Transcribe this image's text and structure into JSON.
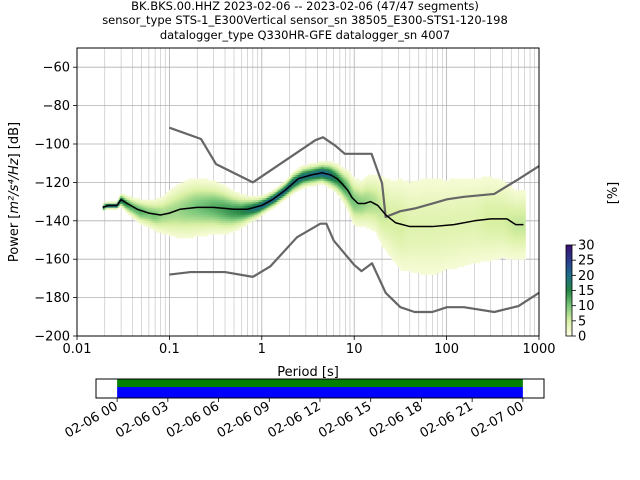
{
  "header": {
    "title_line1": "BK.BKS.00.HHZ   2023-02-06 -- 2023-02-06  (47/47 segments)",
    "title_line2": "sensor_type STS-1_E300Vertical sensor_sn 38505_E300-STS1-120-198",
    "title_line3": "datalogger_type Q330HR-GFE datalogger_sn 4007"
  },
  "chart_data": [
    {
      "type": "heatmap",
      "xlabel": "Period [s]",
      "ylabel_prefix": "Power [",
      "ylabel_units": "m²/s⁴/Hz",
      "ylabel_suffix": "] [dB]",
      "xscale": "log",
      "xlim": [
        0.01,
        1000
      ],
      "ylim": [
        -200,
        -50
      ],
      "x_ticks": [
        {
          "value": 0.01,
          "label": "0.01"
        },
        {
          "value": 0.1,
          "label": "0.1"
        },
        {
          "value": 1,
          "label": "1"
        },
        {
          "value": 10,
          "label": "10"
        },
        {
          "value": 100,
          "label": "100"
        },
        {
          "value": 1000,
          "label": "1000"
        }
      ],
      "y_ticks": [
        {
          "value": -60,
          "label": "−60"
        },
        {
          "value": -80,
          "label": "−80"
        },
        {
          "value": -100,
          "label": "−100"
        },
        {
          "value": -120,
          "label": "−120"
        },
        {
          "value": -140,
          "label": "−140"
        },
        {
          "value": -160,
          "label": "−160"
        },
        {
          "value": -180,
          "label": "−180"
        },
        {
          "value": -200,
          "label": "−200"
        }
      ],
      "grid": true,
      "colorbar": {
        "label": "[%]",
        "min": 0,
        "max": 30,
        "ticks": [
          {
            "value": 0,
            "label": "0"
          },
          {
            "value": 5,
            "label": "5"
          },
          {
            "value": 10,
            "label": "10"
          },
          {
            "value": 15,
            "label": "15"
          },
          {
            "value": 20,
            "label": "20"
          },
          {
            "value": 25,
            "label": "25"
          },
          {
            "value": 30,
            "label": "30"
          }
        ],
        "colors": [
          "#ffffe5",
          "#d9f0a3",
          "#78c679",
          "#238443",
          "#1d6f8a",
          "#2b3a8c",
          "#3b0f70"
        ]
      },
      "density_band": [
        [
          0.019,
          -133,
          0.8,
          22
        ],
        [
          0.021,
          -132,
          0.8,
          22
        ],
        [
          0.024,
          -132,
          0.8,
          22
        ],
        [
          0.027,
          -132,
          0.8,
          24
        ],
        [
          0.03,
          -129,
          1.5,
          20
        ],
        [
          0.034,
          -131,
          2,
          15
        ],
        [
          0.04,
          -133,
          2.5,
          12
        ],
        [
          0.048,
          -135,
          3,
          12
        ],
        [
          0.058,
          -136,
          3.5,
          10
        ],
        [
          0.07,
          -137,
          4,
          10
        ],
        [
          0.085,
          -137,
          5,
          8
        ],
        [
          0.1,
          -136,
          6,
          8
        ],
        [
          0.12,
          -135,
          7,
          8
        ],
        [
          0.15,
          -134,
          7.5,
          9
        ],
        [
          0.19,
          -133,
          7.5,
          10
        ],
        [
          0.24,
          -133,
          7,
          11
        ],
        [
          0.3,
          -133,
          6.5,
          12
        ],
        [
          0.38,
          -134,
          6,
          13
        ],
        [
          0.48,
          -135,
          5,
          14
        ],
        [
          0.6,
          -135,
          4,
          15
        ],
        [
          0.75,
          -134,
          3,
          18
        ],
        [
          0.9,
          -133,
          2.5,
          20
        ],
        [
          1.1,
          -131,
          2,
          22
        ],
        [
          1.4,
          -128,
          2,
          22
        ],
        [
          1.8,
          -124,
          2,
          22
        ],
        [
          2.2,
          -120,
          2.5,
          20
        ],
        [
          2.8,
          -117,
          2.5,
          20
        ],
        [
          3.5,
          -116,
          2.5,
          20
        ],
        [
          4.5,
          -115,
          2.5,
          22
        ],
        [
          5.5,
          -116,
          3,
          20
        ],
        [
          6.5,
          -118,
          3.5,
          16
        ],
        [
          7.5,
          -121,
          4,
          14
        ],
        [
          8.5,
          -124,
          5,
          12
        ],
        [
          10,
          -130,
          6,
          10
        ],
        [
          12,
          -131,
          6,
          9
        ],
        [
          14,
          -130,
          7,
          8
        ],
        [
          17,
          -131,
          8,
          7
        ],
        [
          20,
          -135,
          10,
          6
        ],
        [
          25,
          -139,
          12,
          5
        ],
        [
          32,
          -142,
          14,
          5
        ],
        [
          40,
          -143,
          15,
          4
        ],
        [
          55,
          -143,
          16,
          4
        ],
        [
          75,
          -143,
          16,
          4
        ],
        [
          100,
          -142,
          15,
          4
        ],
        [
          140,
          -141,
          15,
          4
        ],
        [
          200,
          -140,
          14,
          4
        ],
        [
          280,
          -139,
          13,
          5
        ],
        [
          400,
          -139,
          12,
          5
        ],
        [
          550,
          -142,
          10,
          6
        ],
        [
          680,
          -142,
          10,
          6
        ]
      ],
      "series": [
        {
          "name": "",
          "color": "#000000",
          "style": "median",
          "points": [
            [
              0.019,
              -133
            ],
            [
              0.022,
              -132
            ],
            [
              0.027,
              -132
            ],
            [
              0.03,
              -129
            ],
            [
              0.035,
              -131
            ],
            [
              0.045,
              -134
            ],
            [
              0.06,
              -136
            ],
            [
              0.08,
              -137
            ],
            [
              0.1,
              -136
            ],
            [
              0.13,
              -134
            ],
            [
              0.2,
              -133
            ],
            [
              0.3,
              -133
            ],
            [
              0.5,
              -134
            ],
            [
              0.7,
              -134
            ],
            [
              1.0,
              -132
            ],
            [
              1.3,
              -129
            ],
            [
              1.8,
              -124
            ],
            [
              2.5,
              -118
            ],
            [
              3.5,
              -116
            ],
            [
              4.5,
              -115
            ],
            [
              5.5,
              -116
            ],
            [
              6.5,
              -118
            ],
            [
              7.5,
              -121
            ],
            [
              8.5,
              -124
            ],
            [
              9.5,
              -128
            ],
            [
              11,
              -131
            ],
            [
              13,
              -131
            ],
            [
              15,
              -130
            ],
            [
              18,
              -132
            ],
            [
              22,
              -137
            ],
            [
              28,
              -141
            ],
            [
              40,
              -143
            ],
            [
              70,
              -143
            ],
            [
              120,
              -142
            ],
            [
              200,
              -140
            ],
            [
              300,
              -139
            ],
            [
              450,
              -139
            ],
            [
              560,
              -142
            ],
            [
              680,
              -142
            ]
          ]
        },
        {
          "name": "",
          "color": "#666666",
          "style": "model",
          "points": [
            [
              0.1,
              -91.5
            ],
            [
              0.22,
              -97.4
            ],
            [
              0.32,
              -110.5
            ],
            [
              0.8,
              -120
            ],
            [
              3.8,
              -98
            ],
            [
              4.6,
              -96.5
            ],
            [
              6.3,
              -101
            ],
            [
              7.9,
              -105.1
            ],
            [
              15.4,
              -105.1
            ],
            [
              20,
              -120.4
            ],
            [
              21.9,
              -138
            ],
            [
              31.6,
              -135
            ],
            [
              45,
              -133.6
            ],
            [
              70,
              -131
            ],
            [
              101,
              -128.8
            ],
            [
              154,
              -127.5
            ],
            [
              328,
              -126
            ],
            [
              600,
              -118.3
            ],
            [
              1000,
              -111.5
            ]
          ]
        },
        {
          "name": "",
          "color": "#666666",
          "style": "model",
          "points": [
            [
              0.1,
              -168
            ],
            [
              0.17,
              -166.7
            ],
            [
              0.4,
              -166.7
            ],
            [
              0.8,
              -169.2
            ],
            [
              1.24,
              -163.7
            ],
            [
              2.4,
              -148.6
            ],
            [
              4.3,
              -141.5
            ],
            [
              5.0,
              -141.5
            ],
            [
              6.0,
              -150.3
            ],
            [
              10,
              -163
            ],
            [
              12,
              -166.2
            ],
            [
              15.6,
              -162.1
            ],
            [
              21.9,
              -177.5
            ],
            [
              31.6,
              -185
            ],
            [
              45,
              -187.5
            ],
            [
              70,
              -187.5
            ],
            [
              101,
              -185
            ],
            [
              154,
              -185
            ],
            [
              328,
              -187.5
            ],
            [
              600,
              -184.4
            ],
            [
              1000,
              -177.5
            ]
          ]
        }
      ]
    },
    {
      "type": "timeline",
      "tick_labels": [
        "02-06 00",
        "02-06 03",
        "02-06 06",
        "02-06 09",
        "02-06 12",
        "02-06 15",
        "02-06 18",
        "02-06 21",
        "02-07 00"
      ],
      "x_hours": [
        0,
        3,
        6,
        9,
        12,
        15,
        18,
        21,
        24
      ],
      "xlim_hours": [
        -1.25,
        25.25
      ],
      "data_start_hour": 0,
      "data_end_hour": 24,
      "colors": {
        "top": "#008000",
        "bottom": "#0000ff"
      }
    }
  ]
}
